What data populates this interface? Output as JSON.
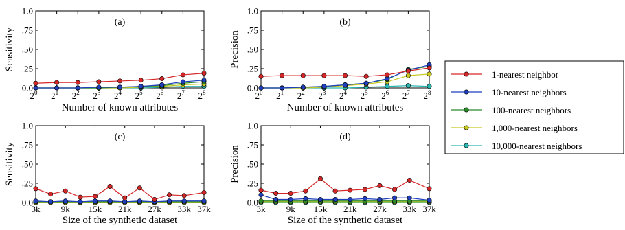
{
  "legend": {
    "entries": [
      {
        "label": "1-nearest neighbor",
        "color": "#d62728"
      },
      {
        "label": "10-nearest neighbors",
        "color": "#1f3fbf"
      },
      {
        "label": "100-nearest neighbors",
        "color": "#2a8a2a"
      },
      {
        "label": "1,000-nearest neighbors",
        "color": "#c8c820"
      },
      {
        "label": "10,000-nearest neighbors",
        "color": "#2ab5b0"
      }
    ]
  },
  "chart_data": [
    {
      "type": "line",
      "panel": "(a)",
      "ylabel": "Sensitivity",
      "xlabel": "Number of known attributes",
      "ylim": [
        0,
        1.0
      ],
      "yticks": [
        "0.0",
        ".25",
        ".50",
        ".75",
        "1.0"
      ],
      "x_exponents": [
        0,
        1,
        2,
        3,
        4,
        5,
        6,
        7,
        8
      ],
      "tick_base": "2",
      "tick_exps": [
        "0",
        "1",
        "2",
        "3",
        "4",
        "5",
        "6",
        "7",
        "8"
      ],
      "series": [
        {
          "name": "1-nearest neighbor",
          "values": [
            0.06,
            0.07,
            0.07,
            0.08,
            0.09,
            0.1,
            0.12,
            0.17,
            0.19
          ]
        },
        {
          "name": "10-nearest neighbors",
          "values": [
            0.0,
            0.0,
            0.0,
            0.01,
            0.01,
            0.02,
            0.04,
            0.08,
            0.1
          ]
        },
        {
          "name": "100-nearest neighbors",
          "values": [
            0.0,
            0.0,
            0.0,
            0.0,
            0.01,
            0.02,
            0.03,
            0.06,
            0.08
          ]
        },
        {
          "name": "1,000-nearest neighbors",
          "values": [
            0.0,
            0.0,
            0.0,
            0.0,
            0.0,
            0.01,
            0.02,
            0.04,
            0.05
          ]
        },
        {
          "name": "10,000-nearest neighbors",
          "values": [
            0.0,
            0.0,
            0.0,
            0.0,
            0.0,
            0.0,
            0.01,
            0.02,
            0.02
          ]
        }
      ]
    },
    {
      "type": "line",
      "panel": "(b)",
      "ylabel": "Precision",
      "xlabel": "Number of known attributes",
      "ylim": [
        0,
        1.0
      ],
      "yticks": [
        "0.0",
        ".25",
        ".50",
        ".75",
        "1.0"
      ],
      "x_exponents": [
        0,
        1,
        2,
        3,
        4,
        5,
        6,
        7,
        8
      ],
      "tick_base": "2",
      "tick_exps": [
        "0",
        "1",
        "2",
        "3",
        "4",
        "5",
        "6",
        "7",
        "8"
      ],
      "series": [
        {
          "name": "1-nearest neighbor",
          "values": [
            0.15,
            0.16,
            0.16,
            0.16,
            0.16,
            0.15,
            0.17,
            0.22,
            0.26
          ]
        },
        {
          "name": "10-nearest neighbors",
          "values": [
            0.0,
            0.0,
            0.01,
            0.02,
            0.04,
            0.06,
            0.12,
            0.23,
            0.3
          ]
        },
        {
          "name": "100-nearest neighbors",
          "values": [
            0.0,
            0.0,
            0.01,
            0.02,
            0.04,
            0.06,
            0.11,
            0.24,
            0.28
          ]
        },
        {
          "name": "1,000-nearest neighbors",
          "values": [
            0.0,
            0.0,
            0.0,
            0.01,
            0.03,
            0.05,
            0.08,
            0.16,
            0.18
          ]
        },
        {
          "name": "10,000-nearest neighbors",
          "values": [
            0.0,
            0.0,
            0.0,
            0.0,
            0.0,
            0.01,
            0.02,
            0.03,
            0.02
          ]
        }
      ]
    },
    {
      "type": "line",
      "panel": "(c)",
      "ylabel": "Sensitivity",
      "xlabel": "Size of the synthetic dataset",
      "ylim": [
        0,
        1.0
      ],
      "yticks": [
        "0.0",
        ".25",
        ".50",
        ".75",
        "1.0"
      ],
      "x": [
        3,
        6,
        9,
        12,
        15,
        18,
        21,
        24,
        27,
        30,
        33,
        37
      ],
      "xlim": [
        3,
        37
      ],
      "xtick_values": [
        3,
        9,
        15,
        21,
        27,
        33,
        37
      ],
      "xtick_labels": [
        "3k",
        "9k",
        "15k",
        "21k",
        "27k",
        "33k",
        "37k"
      ],
      "series": [
        {
          "name": "1-nearest neighbor",
          "values": [
            0.18,
            0.11,
            0.15,
            0.07,
            0.08,
            0.21,
            0.06,
            0.19,
            0.04,
            0.1,
            0.09,
            0.13
          ]
        },
        {
          "name": "10-nearest neighbors",
          "values": [
            0.02,
            0.01,
            0.02,
            0.01,
            0.02,
            0.02,
            0.01,
            0.02,
            0.01,
            0.02,
            0.02,
            0.02
          ]
        },
        {
          "name": "100-nearest neighbors",
          "values": [
            0.01,
            0.01,
            0.01,
            0.01,
            0.01,
            0.01,
            0.01,
            0.01,
            0.01,
            0.01,
            0.01,
            0.01
          ]
        },
        {
          "name": "1,000-nearest neighbors",
          "values": [
            0.0,
            0.0,
            0.0,
            0.0,
            0.0,
            0.0,
            0.0,
            0.0,
            0.0,
            0.0,
            0.0,
            0.0
          ]
        },
        {
          "name": "10,000-nearest neighbors",
          "values": [
            0.0,
            0.0,
            0.0,
            0.0,
            0.0,
            0.0,
            0.0,
            0.0,
            0.0,
            0.0,
            0.0,
            0.0
          ]
        }
      ]
    },
    {
      "type": "line",
      "panel": "(d)",
      "ylabel": "Precision",
      "xlabel": "Size of the synthetic dataset",
      "ylim": [
        0,
        1.0
      ],
      "yticks": [
        "0.0",
        ".25",
        ".50",
        ".75",
        "1.0"
      ],
      "x": [
        3,
        6,
        9,
        12,
        15,
        18,
        21,
        24,
        27,
        30,
        33,
        37
      ],
      "xlim": [
        3,
        37
      ],
      "xtick_values": [
        3,
        9,
        15,
        21,
        27,
        33,
        37
      ],
      "xtick_labels": [
        "3k",
        "9k",
        "15k",
        "21k",
        "27k",
        "33k",
        "37k"
      ],
      "series": [
        {
          "name": "1-nearest neighbor",
          "values": [
            0.16,
            0.12,
            0.12,
            0.15,
            0.31,
            0.15,
            0.16,
            0.17,
            0.22,
            0.17,
            0.29,
            0.18
          ]
        },
        {
          "name": "10-nearest neighbors",
          "values": [
            0.1,
            0.04,
            0.04,
            0.05,
            0.04,
            0.04,
            0.04,
            0.05,
            0.04,
            0.06,
            0.06,
            0.03
          ]
        },
        {
          "name": "100-nearest neighbors",
          "values": [
            0.02,
            0.02,
            0.02,
            0.02,
            0.02,
            0.02,
            0.02,
            0.02,
            0.02,
            0.02,
            0.02,
            0.02
          ]
        },
        {
          "name": "1,000-nearest neighbors",
          "values": [
            0.01,
            0.01,
            0.01,
            0.01,
            0.01,
            0.01,
            0.01,
            0.01,
            0.01,
            0.01,
            0.01,
            0.01
          ]
        },
        {
          "name": "10,000-nearest neighbors",
          "values": [
            0.0,
            0.0,
            0.0,
            0.0,
            0.0,
            0.0,
            0.0,
            0.0,
            0.0,
            0.0,
            0.0,
            0.0
          ]
        }
      ]
    }
  ]
}
